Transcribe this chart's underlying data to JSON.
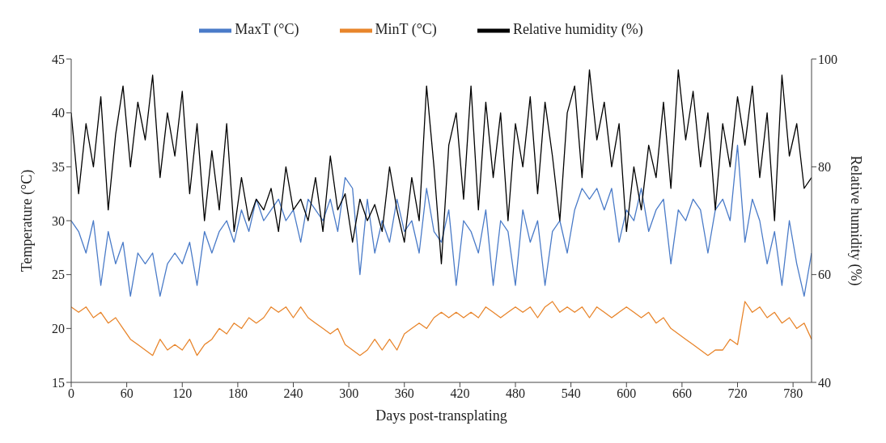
{
  "chart_data": {
    "type": "line",
    "xlabel": "Days post-transplating",
    "ylabel": "Temperature (°C)",
    "y2label": "Relative humidity (%)",
    "x": [
      0,
      8,
      16,
      24,
      32,
      40,
      48,
      56,
      64,
      72,
      80,
      88,
      96,
      104,
      112,
      120,
      128,
      136,
      144,
      152,
      160,
      168,
      176,
      184,
      192,
      200,
      208,
      216,
      224,
      232,
      240,
      248,
      256,
      264,
      272,
      280,
      288,
      296,
      304,
      312,
      320,
      328,
      336,
      344,
      352,
      360,
      368,
      376,
      384,
      392,
      400,
      408,
      416,
      424,
      432,
      440,
      448,
      456,
      464,
      472,
      480,
      488,
      496,
      504,
      512,
      520,
      528,
      536,
      544,
      552,
      560,
      568,
      576,
      584,
      592,
      600,
      608,
      616,
      624,
      632,
      640,
      648,
      656,
      664,
      672,
      680,
      688,
      696,
      704,
      712,
      720,
      728,
      736,
      744,
      752,
      760,
      768,
      776,
      784,
      792,
      800
    ],
    "xlim": [
      0,
      800
    ],
    "xticks": [
      0,
      60,
      120,
      180,
      240,
      300,
      360,
      420,
      480,
      540,
      600,
      660,
      720,
      780
    ],
    "ylim": [
      15,
      45
    ],
    "yticks": [
      15,
      20,
      25,
      30,
      35,
      40,
      45
    ],
    "y2lim": [
      40,
      100
    ],
    "y2ticks": [
      40,
      60,
      80,
      100
    ],
    "grid": false,
    "legend": "top",
    "marker": "none",
    "line_style": "solid",
    "series": [
      {
        "name": "MaxT (°C)",
        "color": "#4a7bc8",
        "values": [
          30,
          29,
          27,
          30,
          24,
          29,
          26,
          28,
          23,
          27,
          26,
          27,
          23,
          26,
          27,
          26,
          28,
          24,
          29,
          27,
          29,
          30,
          28,
          31,
          29,
          32,
          30,
          31,
          32,
          30,
          31,
          28,
          32,
          31,
          30,
          32,
          29,
          34,
          33,
          25,
          32,
          27,
          30,
          28,
          32,
          29,
          30,
          27,
          33,
          29,
          28,
          31,
          24,
          30,
          29,
          27,
          31,
          24,
          30,
          29,
          24,
          31,
          28,
          30,
          24,
          29,
          30,
          27,
          31,
          33,
          32,
          33,
          31,
          33,
          28,
          31,
          30,
          33,
          29,
          31,
          32,
          26,
          31,
          30,
          32,
          31,
          27,
          31,
          32,
          30,
          37,
          28,
          32,
          30,
          26,
          29,
          24,
          30,
          26,
          23,
          27
        ]
      },
      {
        "name": "MinT (°C)",
        "color": "#e8852b",
        "values": [
          22,
          21.5,
          22,
          21,
          21.5,
          20.5,
          21,
          20,
          19,
          18.5,
          18,
          17.5,
          19,
          18,
          18.5,
          18,
          19,
          17.5,
          18.5,
          19,
          20,
          19.5,
          20.5,
          20,
          21,
          20.5,
          21,
          22,
          21.5,
          22,
          21,
          22,
          21,
          20.5,
          20,
          19.5,
          20,
          18.5,
          18,
          17.5,
          18,
          19,
          18,
          19,
          18,
          19.5,
          20,
          20.5,
          20,
          21,
          21.5,
          21,
          21.5,
          21,
          21.5,
          21,
          22,
          21.5,
          21,
          21.5,
          22,
          21.5,
          22,
          21,
          22,
          22.5,
          21.5,
          22,
          21.5,
          22,
          21,
          22,
          21.5,
          21,
          21.5,
          22,
          21.5,
          21,
          21.5,
          20.5,
          21,
          20,
          19.5,
          19,
          18.5,
          18,
          17.5,
          18,
          18,
          19,
          18.5,
          22.5,
          21.5,
          22,
          21,
          21.5,
          20.5,
          21,
          20,
          20.5,
          19
        ]
      },
      {
        "name": "Relative humidity (%)",
        "color": "#000000",
        "axis": "y2",
        "values": [
          90,
          75,
          88,
          80,
          93,
          72,
          86,
          95,
          80,
          92,
          85,
          97,
          78,
          90,
          82,
          94,
          75,
          88,
          70,
          83,
          72,
          88,
          68,
          78,
          70,
          74,
          72,
          76,
          68,
          80,
          72,
          74,
          70,
          78,
          68,
          82,
          72,
          75,
          66,
          74,
          70,
          73,
          68,
          80,
          72,
          66,
          78,
          70,
          95,
          80,
          62,
          84,
          90,
          74,
          95,
          72,
          92,
          78,
          90,
          70,
          88,
          80,
          93,
          75,
          92,
          82,
          70,
          90,
          95,
          78,
          98,
          85,
          92,
          80,
          88,
          68,
          80,
          72,
          84,
          78,
          92,
          76,
          98,
          85,
          94,
          80,
          90,
          72,
          88,
          80,
          93,
          84,
          95,
          78,
          90,
          70,
          97,
          82,
          88,
          76,
          78
        ]
      }
    ]
  }
}
